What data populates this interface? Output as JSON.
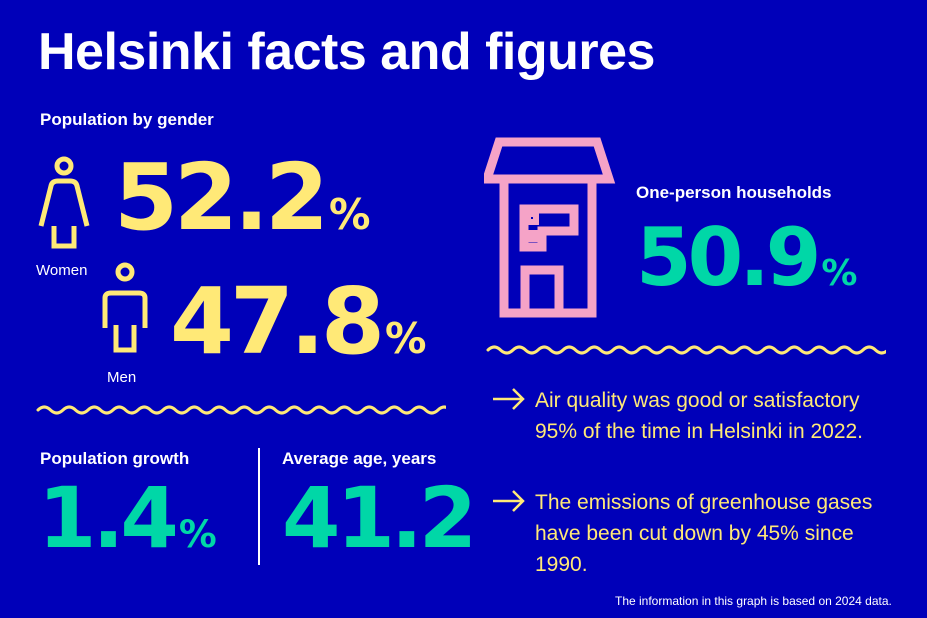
{
  "title": "Helsinki facts and figures",
  "gender": {
    "heading": "Population by gender",
    "women": {
      "label": "Women",
      "value": "52.2",
      "unit": "%"
    },
    "men": {
      "label": "Men",
      "value": "47.8",
      "unit": "%"
    }
  },
  "growth": {
    "heading": "Population growth",
    "value": "1.4",
    "unit": "%"
  },
  "age": {
    "heading": "Average age, years",
    "value": "41.2"
  },
  "households": {
    "heading": "One-person households",
    "value": "50.9",
    "unit": "%"
  },
  "facts": [
    {
      "text": "Air quality was good or satisfactory 95% of the time in Helsinki in 2022."
    },
    {
      "text": "The emissions of greenhouse gases have been cut down by 45% since 1990."
    }
  ],
  "footer": "The information in this graph is based on 2024 data.",
  "colors": {
    "background": "#0000b9",
    "yellow": "#ffe977",
    "green": "#00d7a7",
    "pink": "#f5a3c7"
  }
}
